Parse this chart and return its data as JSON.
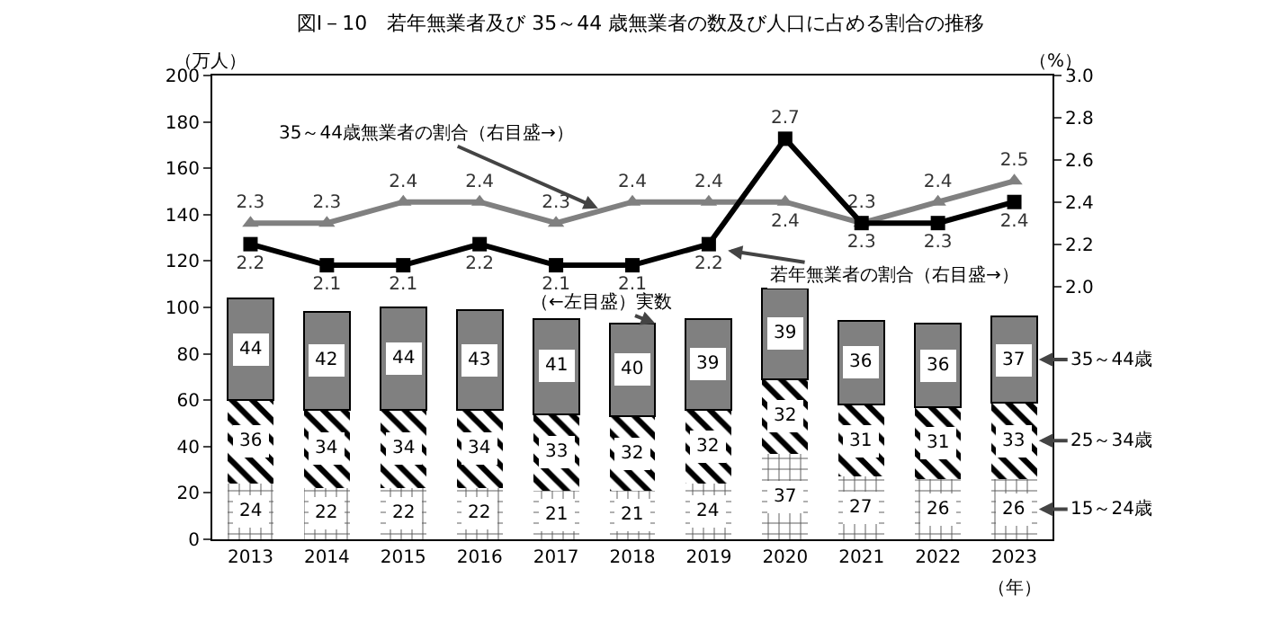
{
  "chart_data": {
    "type": "bar",
    "title": "図Ⅰ－10　若年無業者及び 35～44 歳無業者の数及び人口に占める割合の推移",
    "ylabel": "（万人）",
    "y2label": "（%）",
    "xlabel": "（年）",
    "categories": [
      "2013",
      "2014",
      "2015",
      "2016",
      "2017",
      "2018",
      "2019",
      "2020",
      "2021",
      "2022",
      "2023"
    ],
    "stacked": true,
    "data_labels": true,
    "legend": false,
    "grid": false,
    "ylim": [
      0,
      200
    ],
    "yticks": [
      0,
      20,
      40,
      60,
      80,
      100,
      120,
      140,
      160,
      180,
      200
    ],
    "y2lim": [
      0.8,
      3.0
    ],
    "y2ticks": [
      {
        "value": 2,
        "label": "2.0"
      },
      {
        "value": 2.2,
        "label": "2.2"
      },
      {
        "value": 2.4,
        "label": "2.4"
      },
      {
        "value": 2.6,
        "label": "2.6"
      },
      {
        "value": 2.8,
        "label": "2.8"
      },
      {
        "value": 3,
        "label": "3.0"
      }
    ],
    "series": [
      {
        "name": "15～24歳",
        "color": "#ffffff",
        "values": [
          24,
          22,
          22,
          22,
          21,
          21,
          24,
          37,
          27,
          26,
          26
        ]
      },
      {
        "name": "25～34歳",
        "color": "#ffffff",
        "values": [
          36,
          34,
          34,
          34,
          33,
          32,
          32,
          32,
          31,
          31,
          33
        ]
      },
      {
        "name": "35～44歳",
        "color": "#808080",
        "values": [
          44,
          42,
          44,
          43,
          41,
          40,
          39,
          39,
          36,
          36,
          37
        ]
      },
      {
        "name": "35～44歳無業者の割合（右目盛→）",
        "type": "line",
        "axis": "y2",
        "color": "#808080",
        "marker": "triangle",
        "values": [
          2.3,
          2.3,
          2.4,
          2.4,
          2.3,
          2.4,
          2.4,
          2.4,
          2.3,
          2.4,
          2.5
        ]
      },
      {
        "name": "若年無業者の割合（右目盛→）",
        "type": "line",
        "axis": "y2",
        "color": "#000000",
        "marker": "square",
        "values": [
          2.2,
          2.1,
          2.1,
          2.2,
          2.1,
          2.1,
          2.2,
          2.7,
          2.3,
          2.3,
          2.4
        ]
      }
    ],
    "annotations": [
      {
        "text": "（←左目盛）実数",
        "x": "2018",
        "y": 93
      }
    ]
  }
}
